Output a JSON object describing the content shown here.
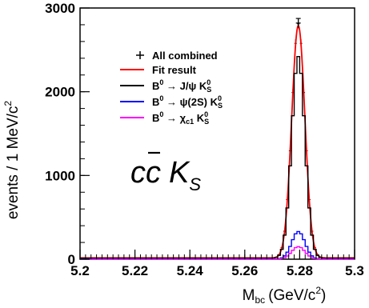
{
  "chart_data": {
    "type": "line",
    "xlabel": "M",
    "xlabel_sub": "bc",
    "xlabel_unit": "(GeV/c",
    "xlabel_unit_sup": "2",
    "xlabel_unit_close": ")",
    "ylabel": "events / 1 MeV/c",
    "ylabel_sup": "2",
    "xlim": [
      5.2,
      5.3
    ],
    "ylim": [
      0,
      3000
    ],
    "x_ticks": [
      "5.2",
      "5.22",
      "5.24",
      "5.26",
      "5.28",
      "5.3"
    ],
    "x_tick_values": [
      5.2,
      5.22,
      5.24,
      5.26,
      5.28,
      5.3
    ],
    "y_ticks": [
      "0",
      "1000",
      "2000",
      "3000"
    ],
    "y_tick_values": [
      0,
      1000,
      2000,
      3000
    ],
    "annotation": {
      "c": "c",
      "cbar": "c",
      "k": "K",
      "k_sub": "S"
    },
    "legend": {
      "placement": "top-center",
      "entries": [
        {
          "text": "All combined",
          "color": "#000000",
          "style": "marker"
        },
        {
          "text": "Fit result",
          "color": "#ff0000",
          "style": "line"
        },
        {
          "text": "B",
          "sup": "0",
          "arrow": " → J/ψ  K",
          "tail_sub": "S",
          "tail_sup": "0",
          "color": "#000000",
          "style": "line"
        },
        {
          "text": "B",
          "sup": "0",
          "arrow": " → ψ(2S) K",
          "tail_sub": "S",
          "tail_sup": "0",
          "color": "#0000ff",
          "style": "line"
        },
        {
          "text": "B",
          "sup": "0",
          "arrow": " → χ",
          "mid_sub": "c1",
          "tail": " K",
          "tail_sub": "S",
          "tail_sup": "0",
          "color": "#ff00ff",
          "style": "line"
        }
      ]
    },
    "peak": {
      "mean": 5.2795,
      "sigma": 0.0024
    },
    "series": [
      {
        "name": "All combined",
        "color": "#000000",
        "style": "points",
        "peak": 2810,
        "background": 15
      },
      {
        "name": "Fit result",
        "color": "#ff0000",
        "style": "line",
        "peak": 2790,
        "background": 15
      },
      {
        "name": "B0 → J/ψ KS0",
        "color": "#000000",
        "style": "step",
        "peak": 2420,
        "background": 12
      },
      {
        "name": "B0 → ψ(2S) KS0",
        "color": "#0000ff",
        "style": "step",
        "peak": 330,
        "background": 2
      },
      {
        "name": "B0 → χc1 KS0",
        "color": "#ff00ff",
        "style": "step",
        "peak": 150,
        "background": 1
      }
    ],
    "data_points_max": {
      "x": 5.2795,
      "y": 2820,
      "err": 55
    }
  }
}
